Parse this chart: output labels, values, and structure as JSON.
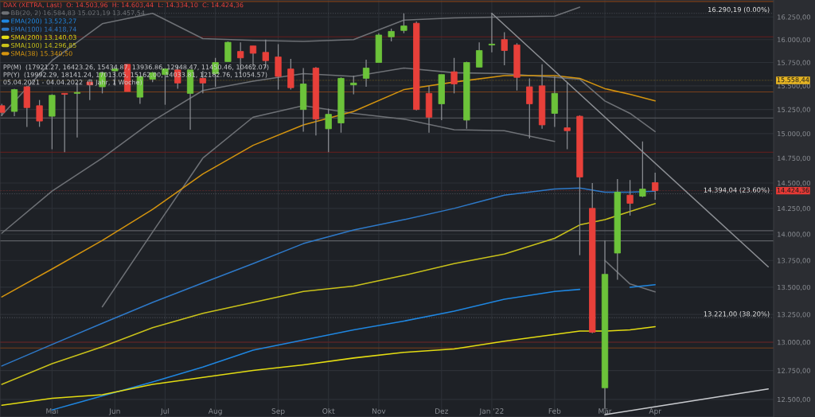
{
  "chart_data": {
    "type": "candlestick",
    "title": "DAX (XETRA, Last)  O: 14.503,96  H: 14.603,44  L: 14.334,10  C: 14.424,36",
    "x": [
      "2021-04-05",
      "2021-04-12",
      "2021-04-19",
      "2021-04-26",
      "2021-05-03",
      "2021-05-10",
      "2021-05-17",
      "2021-05-24",
      "2021-05-31",
      "2021-06-07",
      "2021-06-14",
      "2021-06-21",
      "2021-06-28",
      "2021-07-05",
      "2021-07-12",
      "2021-07-19",
      "2021-07-26",
      "2021-08-02",
      "2021-08-09",
      "2021-08-16",
      "2021-08-23",
      "2021-08-30",
      "2021-09-06",
      "2021-09-13",
      "2021-09-20",
      "2021-09-27",
      "2021-10-04",
      "2021-10-11",
      "2021-10-18",
      "2021-10-25",
      "2021-11-01",
      "2021-11-08",
      "2021-11-15",
      "2021-11-22",
      "2021-11-29",
      "2021-12-06",
      "2021-12-13",
      "2021-12-20",
      "2021-12-27",
      "2022-01-03",
      "2022-01-10",
      "2022-01-17",
      "2022-01-24",
      "2022-01-31",
      "2022-02-07",
      "2022-02-14",
      "2022-02-21",
      "2022-02-28",
      "2022-03-07",
      "2022-03-14",
      "2022-03-21",
      "2022-03-28",
      "2022-04-04"
    ],
    "ohlc": [
      [
        15290,
        15310,
        15180,
        15220
      ],
      [
        15230,
        15470,
        15180,
        15460
      ],
      [
        15490,
        15500,
        15070,
        15270
      ],
      [
        15290,
        15350,
        15070,
        15130
      ],
      [
        15180,
        15410,
        14840,
        15400
      ],
      [
        15420,
        15420,
        14810,
        15410
      ],
      [
        15420,
        15530,
        14960,
        15430
      ],
      [
        15540,
        15570,
        15350,
        15510
      ],
      [
        15490,
        15650,
        15420,
        15640
      ],
      [
        15660,
        15690,
        15500,
        15680
      ],
      [
        15730,
        15730,
        15440,
        15440
      ],
      [
        15380,
        15600,
        15310,
        15600
      ],
      [
        15570,
        15650,
        15540,
        15640
      ],
      [
        15620,
        15690,
        15300,
        15680
      ],
      [
        15670,
        15720,
        15470,
        15530
      ],
      [
        15420,
        15670,
        15040,
        15670
      ],
      [
        15580,
        15660,
        15420,
        15530
      ],
      [
        15630,
        15800,
        15490,
        15750
      ],
      [
        15760,
        15980,
        15760,
        15970
      ],
      [
        15870,
        15970,
        15630,
        15800
      ],
      [
        15930,
        15930,
        15700,
        15850
      ],
      [
        15860,
        16000,
        15690,
        15770
      ],
      [
        15810,
        15950,
        15460,
        15600
      ],
      [
        15680,
        15790,
        15460,
        15480
      ],
      [
        15250,
        15690,
        15020,
        15520
      ],
      [
        15690,
        15700,
        14980,
        15150
      ],
      [
        15050,
        15260,
        14810,
        15200
      ],
      [
        15110,
        15590,
        15010,
        15580
      ],
      [
        15510,
        15610,
        15410,
        15530
      ],
      [
        15580,
        15780,
        15490,
        15690
      ],
      [
        15750,
        16070,
        15750,
        16050
      ],
      [
        16030,
        16120,
        15980,
        16090
      ],
      [
        16100,
        16290,
        16070,
        16150
      ],
      [
        16180,
        16200,
        15240,
        15250
      ],
      [
        15420,
        15500,
        15010,
        15170
      ],
      [
        15310,
        15620,
        15140,
        15620
      ],
      [
        15650,
        15800,
        15420,
        15520
      ],
      [
        15140,
        15760,
        15050,
        15750
      ],
      [
        15700,
        15970,
        15700,
        15880
      ],
      [
        15940,
        16290,
        15860,
        15950
      ],
      [
        16000,
        16080,
        15720,
        15880
      ],
      [
        15940,
        15960,
        15450,
        15590
      ],
      [
        15490,
        15580,
        14950,
        15310
      ],
      [
        15500,
        15730,
        15050,
        15090
      ],
      [
        15210,
        15600,
        15070,
        15420
      ],
      [
        15060,
        15540,
        14840,
        15030
      ],
      [
        15180,
        15190,
        13800,
        14560
      ],
      [
        14250,
        14500,
        13080,
        13090
      ],
      [
        12600,
        13940,
        12420,
        13620
      ],
      [
        13820,
        14540,
        13570,
        14410
      ],
      [
        14380,
        14530,
        14180,
        14300
      ],
      [
        14370,
        14920,
        14360,
        14440
      ],
      [
        14503.96,
        14603.44,
        14334.1,
        14424.36
      ]
    ],
    "colors": [
      "#e8403a",
      "#6cc33a",
      "#e8403a",
      "#e8403a",
      "#6cc33a",
      "#e8403a",
      "#6cc33a",
      "#e8403a",
      "#6cc33a",
      "#6cc33a",
      "#e8403a",
      "#6cc33a",
      "#6cc33a",
      "#6cc33a",
      "#e8403a",
      "#6cc33a",
      "#e8403a",
      "#6cc33a",
      "#6cc33a",
      "#e8403a",
      "#e8403a",
      "#e8403a",
      "#e8403a",
      "#e8403a",
      "#6cc33a",
      "#e8403a",
      "#6cc33a",
      "#6cc33a",
      "#6cc33a",
      "#6cc33a",
      "#6cc33a",
      "#6cc33a",
      "#6cc33a",
      "#e8403a",
      "#e8403a",
      "#6cc33a",
      "#e8403a",
      "#6cc33a",
      "#6cc33a",
      "#6cc33a",
      "#e8403a",
      "#e8403a",
      "#e8403a",
      "#e8403a",
      "#6cc33a",
      "#e8403a",
      "#e8403a",
      "#e8403a",
      "#6cc33a",
      "#6cc33a",
      "#e8403a",
      "#6cc33a",
      "#e8403a"
    ],
    "series": [
      {
        "type": "line",
        "name": "BB(20, 2) 16.584,83 15.021,19 13.457,54",
        "color": "#6e7176",
        "x": [
          "2021-04-05",
          "2021-05-03",
          "2021-05-31",
          "2021-06-28",
          "2021-07-26",
          "2021-08-23",
          "2021-09-20",
          "2021-10-18",
          "2021-11-15",
          "2021-12-13",
          "2022-01-10",
          "2022-02-07",
          "2022-02-21"
        ],
        "values": [
          15190,
          15770,
          16175,
          16290,
          16010,
          15990,
          15980,
          16000,
          16215,
          16240,
          16250,
          16260,
          16360
        ]
      },
      {
        "type": "line",
        "color": "#6e7176",
        "x": [
          "2021-04-05",
          "2021-05-03",
          "2021-05-31",
          "2021-06-28",
          "2021-07-26",
          "2021-08-23",
          "2021-09-20",
          "2021-10-18",
          "2021-11-15",
          "2021-12-13",
          "2022-01-10",
          "2022-02-07",
          "2022-02-21",
          "2022-03-07",
          "2022-03-21",
          "2022-04-04"
        ],
        "values": [
          14010,
          14420,
          14750,
          15130,
          15450,
          15550,
          15630,
          15600,
          15690,
          15640,
          15630,
          15590,
          15570,
          15340,
          15210,
          15021.19
        ]
      },
      {
        "type": "line",
        "color": "#6e7176",
        "x": [
          "2021-05-31",
          "2021-06-28",
          "2021-07-26",
          "2021-08-23",
          "2021-09-20",
          "2021-10-18",
          "2021-11-15",
          "2021-12-13",
          "2022-01-10",
          "2022-02-07",
          "2022-02-21",
          "2022-03-07",
          "2022-03-21",
          "2022-04-04"
        ],
        "values": [
          13320,
          14020,
          14750,
          15170,
          15290,
          15210,
          15150,
          15040,
          15030,
          14920,
          null,
          13750,
          13530,
          13457.54
        ]
      },
      {
        "type": "line",
        "name": "EMA(200) 13.523,27",
        "color": "#1f86e0",
        "x": [
          "2021-05-03",
          "2021-05-31",
          "2021-06-28",
          "2021-07-26",
          "2021-08-23",
          "2021-09-20",
          "2021-10-18",
          "2021-11-15",
          "2021-12-13",
          "2022-01-10",
          "2022-02-07",
          "2022-02-21",
          "2022-03-07",
          "2022-03-21",
          "2022-04-04"
        ],
        "values": [
          12410,
          12530,
          12650,
          12780,
          12930,
          13020,
          13110,
          13190,
          13280,
          13390,
          13460,
          13480,
          null,
          13500,
          13523.27
        ]
      },
      {
        "type": "line",
        "name": "EMA(100) 14.418,74",
        "color": "#2e79c8",
        "x": [
          "2021-04-05",
          "2021-05-03",
          "2021-05-31",
          "2021-06-28",
          "2021-07-26",
          "2021-08-23",
          "2021-09-20",
          "2021-10-18",
          "2021-11-15",
          "2021-12-13",
          "2022-01-10",
          "2022-02-07",
          "2022-02-21",
          "2022-03-07",
          "2022-03-21",
          "2022-04-04"
        ],
        "values": [
          12790,
          12980,
          13170,
          13360,
          13540,
          13720,
          13910,
          14040,
          14140,
          14250,
          14380,
          14440,
          14450,
          14410,
          14410,
          14418.74
        ]
      },
      {
        "type": "line",
        "name": "SMA(200) 13.140,03",
        "color": "#e3dc12",
        "x": [
          "2021-04-05",
          "2021-05-03",
          "2021-05-31",
          "2021-06-28",
          "2021-07-26",
          "2021-08-23",
          "2021-09-20",
          "2021-10-18",
          "2021-11-15",
          "2021-12-13",
          "2022-01-10",
          "2022-02-07",
          "2022-02-21",
          "2022-03-07",
          "2022-03-21",
          "2022-04-04"
        ],
        "values": [
          12450,
          12510,
          12540,
          12630,
          12690,
          12750,
          12800,
          12860,
          12910,
          12940,
          13010,
          13070,
          13100,
          13100,
          13110,
          13140.03
        ]
      },
      {
        "type": "line",
        "name": "SMA(100) 14.296,85",
        "color": "#c9c21a",
        "x": [
          "2021-04-05",
          "2021-05-03",
          "2021-05-31",
          "2021-06-28",
          "2021-07-26",
          "2021-08-23",
          "2021-09-20",
          "2021-10-18",
          "2021-11-15",
          "2021-12-13",
          "2022-01-10",
          "2022-02-07",
          "2022-02-21",
          "2022-03-07",
          "2022-03-21",
          "2022-04-04"
        ],
        "values": [
          12630,
          12810,
          12960,
          13130,
          13260,
          13360,
          13460,
          13510,
          13610,
          13720,
          13810,
          13960,
          14090,
          14140,
          14220,
          14296.85
        ]
      },
      {
        "type": "line",
        "name": "SMA(38) 15.340,50",
        "color": "#d4940f",
        "x": [
          "2021-04-05",
          "2021-05-03",
          "2021-05-31",
          "2021-06-28",
          "2021-07-26",
          "2021-08-23",
          "2021-09-20",
          "2021-10-18",
          "2021-11-15",
          "2021-12-13",
          "2022-01-10",
          "2022-02-07",
          "2022-02-21",
          "2022-03-07",
          "2022-03-21",
          "2022-04-04"
        ],
        "values": [
          13410,
          13670,
          13940,
          14240,
          14590,
          14880,
          15090,
          15230,
          15460,
          15540,
          15610,
          15610,
          15580,
          15470,
          15410,
          15340.5
        ]
      },
      {
        "type": "line",
        "color": "#8c8f94",
        "x": [
          "2022-01-03",
          "2022-06-06"
        ],
        "values": [
          16290,
          13690
        ]
      },
      {
        "type": "line",
        "color": "#c9cbcf",
        "x": [
          "2022-03-07",
          "2022-06-06"
        ],
        "values": [
          12370,
          12590
        ]
      }
    ],
    "xlim": [
      "2021-04-04",
      "2022-06-09"
    ],
    "ylim": [
      12350,
      16440
    ],
    "log": true,
    "xticks": [
      {
        "value": "2021-05-03",
        "label": "Mai"
      },
      {
        "value": "2021-06-07",
        "label": "Jun"
      },
      {
        "value": "2021-07-05",
        "label": "Jul"
      },
      {
        "value": "2021-08-02",
        "label": "Aug"
      },
      {
        "value": "2021-09-06",
        "label": "Sep"
      },
      {
        "value": "2021-10-04",
        "label": "Okt"
      },
      {
        "value": "2021-11-01",
        "label": "Nov"
      },
      {
        "value": "2021-12-06",
        "label": "Dez"
      },
      {
        "value": "2022-01-03",
        "label": "Jan '22"
      },
      {
        "value": "2022-02-07",
        "label": "Feb"
      },
      {
        "value": "2022-03-07",
        "label": "Mär"
      },
      {
        "value": "2022-04-04",
        "label": "Apr"
      }
    ],
    "yticks": [
      {
        "value": 12500,
        "label": "12.500,00"
      },
      {
        "value": 12750,
        "label": "12.750,00"
      },
      {
        "value": 13000,
        "label": "13.000,00"
      },
      {
        "value": 13250,
        "label": "13.250,00"
      },
      {
        "value": 13500,
        "label": "13.500,00"
      },
      {
        "value": 13750,
        "label": "13.750,00"
      },
      {
        "value": 14000,
        "label": "14.000,00"
      },
      {
        "value": 14250,
        "label": "14.250,00"
      },
      {
        "value": 14500,
        "label": "14.500,00"
      },
      {
        "value": 14750,
        "label": "14.750,00"
      },
      {
        "value": 15000,
        "label": "15.000,00"
      },
      {
        "value": 15250,
        "label": "15.250,00"
      },
      {
        "value": 15500,
        "label": "15.500,00"
      },
      {
        "value": 15750,
        "label": "15.750,00"
      },
      {
        "value": 16000,
        "label": "16.000,00"
      },
      {
        "value": 16250,
        "label": "16.250,00"
      }
    ],
    "grid": true,
    "legend": "top left",
    "ref_lines": [
      {
        "axis": "y",
        "value": 16290.19,
        "label": "16.290,19 (0.00%)",
        "color": "#4a4e55",
        "line_style": "dotted"
      },
      {
        "axis": "y",
        "value": 14394.04,
        "label": "14.394,04 (23.60%)",
        "color": "#4a4e55",
        "line_style": "dotted"
      },
      {
        "axis": "y",
        "value": 13221.0,
        "label": "13.221,00 (38.20%)",
        "color": "#4a4e55",
        "line_style": "dotted"
      },
      {
        "axis": "y",
        "value": 16030,
        "color": "#6a1e1e",
        "line_style": "solid"
      },
      {
        "axis": "y",
        "value": 14810,
        "color": "#6a1e1e",
        "line_style": "solid"
      },
      {
        "axis": "y",
        "value": 13000,
        "color": "#6a1e1e",
        "line_style": "solid"
      },
      {
        "axis": "y",
        "value": 16423.26,
        "color": "#7a3f1a",
        "line_style": "solid"
      },
      {
        "axis": "y",
        "value": 15434.87,
        "color": "#7a3f1a",
        "line_style": "solid"
      },
      {
        "axis": "y",
        "value": 13936.86,
        "color": "#5c5f64",
        "line_style": "solid"
      },
      {
        "axis": "y",
        "value": 12948.47,
        "color": "#7a3f1a",
        "line_style": "solid"
      },
      {
        "axis": "y",
        "value": 15162.0,
        "color": "#5c5f64",
        "line_style": "solid"
      },
      {
        "axis": "y",
        "value": 14033.81,
        "color": "#5c5f64",
        "line_style": "solid"
      },
      {
        "axis": "y",
        "value": 15558.44,
        "label": "15.558,44",
        "color": "#e6b422",
        "line_style": "dashed"
      },
      {
        "axis": "y",
        "value": 14424.36,
        "label": "14.424,36",
        "color": "#e53935",
        "line_style": "dashed"
      }
    ],
    "annotations": [
      "PP(M)  (17921.27, 16423.26, 15434.87, 13936.86, 12948.47, 11450.46, 10462.07)",
      "PP(Y)  (19992.29, 18141.24, 17013.05, 15162.00, 14033.81, 12182.76, 11054.57)",
      "05.04.2021 - 04.04.2022  (1 Jahr, 1 Woche)"
    ]
  }
}
